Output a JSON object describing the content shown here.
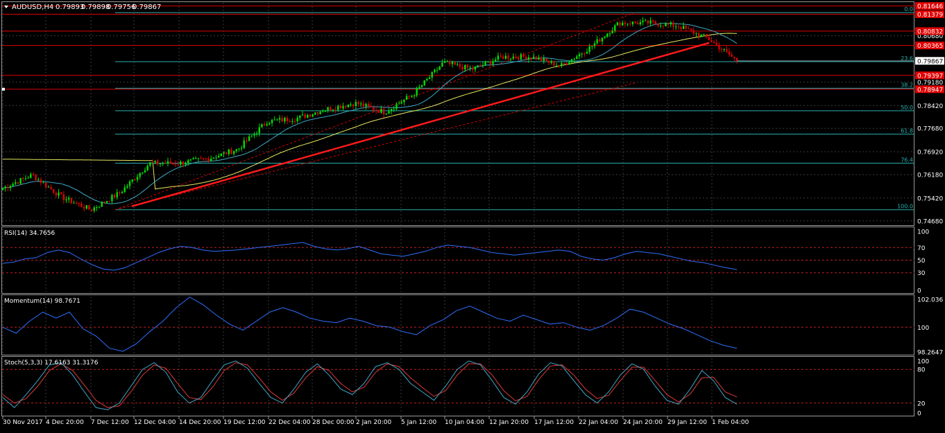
{
  "colors": {
    "background": "#000000",
    "grid": "#3a3a3a",
    "bull": "#00e000",
    "bear": "#e00000",
    "trendline": "#ff1a1a",
    "ma_fast": "#3fa9c8",
    "ma_slow": "#e8e860",
    "fib": "#2ab0b0",
    "hline": "#e00000",
    "indicator": "#2f6fff",
    "stoch_signal": "#e03a3a",
    "level": "#c02020",
    "text": "#ffffff"
  },
  "chart_data": [
    {
      "type": "candlestick",
      "id": "price",
      "header": {
        "symbol": "AUDUSD,H4",
        "open": "0.79893",
        "high": "0.79898",
        "low": "0.79756",
        "close": "0.79867"
      },
      "ylim": [
        0.7454,
        0.8175
      ],
      "y_ticks": [
        "0.80680",
        "0.79180",
        "0.78420",
        "0.77680",
        "0.76920",
        "0.76180",
        "0.75420",
        "0.74680"
      ],
      "current_price": "0.79867",
      "price_tags": [
        {
          "label": "0.81646",
          "value": 0.81646
        },
        {
          "label": "0.81379",
          "value": 0.81379
        },
        {
          "label": "0.80832",
          "value": 0.80832
        },
        {
          "label": "0.80365",
          "value": 0.80365
        },
        {
          "label": "0.79397",
          "value": 0.79397
        },
        {
          "label": "0.78947",
          "value": 0.78947
        }
      ],
      "fib_levels": [
        {
          "label": "0.0",
          "value": 0.8143
        },
        {
          "label": "23.6",
          "value": 0.7984
        },
        {
          "label": "38.2",
          "value": 0.7898
        },
        {
          "label": "50.0",
          "value": 0.7825
        },
        {
          "label": "61.8",
          "value": 0.7749
        },
        {
          "label": "76.4",
          "value": 0.7655
        },
        {
          "label": "100.0",
          "value": 0.7504
        }
      ],
      "anchor_points": [
        {
          "date": "30 Nov 2017 04:00",
          "close": 0.7574
        },
        {
          "date": "4 Dec 20:00",
          "close": 0.7617
        },
        {
          "date": "6 Dec 12:00",
          "close": 0.7545
        },
        {
          "date": "8 Dec 00:00",
          "close": 0.7504
        },
        {
          "date": "12 Dec 04:00",
          "close": 0.756
        },
        {
          "date": "13 Dec 12:00",
          "close": 0.7655
        },
        {
          "date": "15 Dec 04:00",
          "close": 0.7655
        },
        {
          "date": "19 Dec 12:00",
          "close": 0.767
        },
        {
          "date": "22 Dec 04:00",
          "close": 0.77
        },
        {
          "date": "27 Dec 12:00",
          "close": 0.779
        },
        {
          "date": "29 Dec 00:00",
          "close": 0.78
        },
        {
          "date": "2 Jan 20:00",
          "close": 0.783
        },
        {
          "date": "5 Jan 12:00",
          "close": 0.785
        },
        {
          "date": "9 Jan 04:00",
          "close": 0.782
        },
        {
          "date": "10 Jan 12:00",
          "close": 0.788
        },
        {
          "date": "12 Jan 04:00",
          "close": 0.798
        },
        {
          "date": "15 Jan 12:00",
          "close": 0.796
        },
        {
          "date": "17 Jan 12:00",
          "close": 0.8
        },
        {
          "date": "19 Jan 12:00",
          "close": 0.8
        },
        {
          "date": "22 Jan 04:00",
          "close": 0.797
        },
        {
          "date": "23 Jan 12:00",
          "close": 0.803
        },
        {
          "date": "24 Jan 20:00",
          "close": 0.811
        },
        {
          "date": "26 Jan 12:00",
          "close": 0.811
        },
        {
          "date": "29 Jan 12:00",
          "close": 0.81
        },
        {
          "date": "30 Jan 20:00",
          "close": 0.806
        },
        {
          "date": "1 Feb 04:00",
          "close": 0.7987
        }
      ]
    },
    {
      "type": "line",
      "id": "rsi",
      "label": "RSI(14) 34.7656",
      "ylim": [
        0,
        100
      ],
      "y_ticks": [
        "100",
        "70",
        "50",
        "30",
        "0"
      ],
      "levels": [
        70,
        50,
        30
      ],
      "values": [
        45,
        47,
        52,
        54,
        62,
        66,
        62,
        52,
        43,
        36,
        34,
        38,
        46,
        54,
        62,
        68,
        72,
        70,
        66,
        64,
        65,
        66,
        68,
        70,
        72,
        74,
        76,
        78,
        72,
        68,
        66,
        68,
        72,
        66,
        60,
        58,
        56,
        60,
        64,
        70,
        74,
        72,
        70,
        66,
        62,
        60,
        58,
        60,
        62,
        64,
        66,
        64,
        56,
        52,
        50,
        54,
        60,
        64,
        62,
        60,
        56,
        52,
        48,
        46,
        42,
        38,
        35
      ]
    },
    {
      "type": "line",
      "id": "momentum",
      "label": "Momentum(14) 98.7671",
      "ylim": [
        98.2647,
        102.036
      ],
      "y_ticks": [
        "102.036",
        "100",
        "98.2647"
      ],
      "levels": [
        100
      ],
      "values": [
        100.0,
        99.6,
        100.4,
        101.0,
        100.6,
        101.0,
        99.9,
        99.4,
        98.6,
        98.4,
        98.9,
        99.7,
        100.4,
        101.3,
        102.0,
        101.5,
        100.8,
        100.2,
        99.8,
        100.4,
        101.0,
        101.3,
        101.0,
        100.6,
        100.4,
        100.3,
        100.6,
        100.4,
        100.1,
        100.0,
        99.7,
        99.5,
        100.1,
        100.5,
        101.1,
        101.4,
        101.0,
        100.6,
        100.4,
        100.8,
        100.5,
        100.2,
        100.3,
        100.0,
        99.8,
        100.1,
        100.6,
        101.2,
        101.0,
        100.6,
        100.2,
        99.9,
        99.5,
        99.1,
        98.8,
        98.6
      ]
    },
    {
      "type": "line",
      "id": "stochastic",
      "label": "Stoch(5,3,3) 17.6163 31.3176",
      "ylim": [
        0,
        100
      ],
      "y_ticks": [
        "100",
        "80",
        "20",
        "0"
      ],
      "levels": [
        80,
        20
      ],
      "series": [
        {
          "values": [
            30,
            12,
            35,
            60,
            88,
            92,
            70,
            40,
            12,
            8,
            20,
            50,
            80,
            92,
            75,
            40,
            20,
            30,
            60,
            88,
            95,
            82,
            55,
            30,
            20,
            45,
            75,
            90,
            70,
            45,
            35,
            55,
            85,
            92,
            80,
            55,
            40,
            25,
            50,
            80,
            95,
            88,
            60,
            30,
            18,
            40,
            72,
            92,
            86,
            60,
            35,
            20,
            40,
            70,
            90,
            80,
            50,
            25,
            18,
            45,
            78,
            60,
            30,
            18
          ]
        },
        {
          "values": [
            35,
            20,
            28,
            50,
            78,
            90,
            78,
            52,
            25,
            12,
            15,
            40,
            70,
            88,
            82,
            55,
            30,
            26,
            48,
            78,
            92,
            88,
            65,
            40,
            25,
            38,
            65,
            85,
            78,
            55,
            40,
            48,
            75,
            90,
            85,
            65,
            48,
            32,
            42,
            70,
            90,
            90,
            70,
            42,
            24,
            32,
            62,
            86,
            88,
            70,
            45,
            28,
            34,
            60,
            84,
            84,
            60,
            35,
            22,
            36,
            65,
            66,
            40,
            31
          ]
        }
      ]
    }
  ],
  "time_axis": [
    "30 Nov 2017",
    "4 Dec 20:00",
    "7 Dec 12:00",
    "12 Dec 04:00",
    "14 Dec 20:00",
    "19 Dec 12:00",
    "22 Dec 04:00",
    "28 Dec 00:00",
    "2 Jan 20:00",
    "5 Jan 12:00",
    "10 Jan 04:00",
    "12 Jan 20:00",
    "17 Jan 12:00",
    "22 Jan 04:00",
    "24 Jan 20:00",
    "29 Jan 12:00",
    "1 Feb 04:00"
  ]
}
